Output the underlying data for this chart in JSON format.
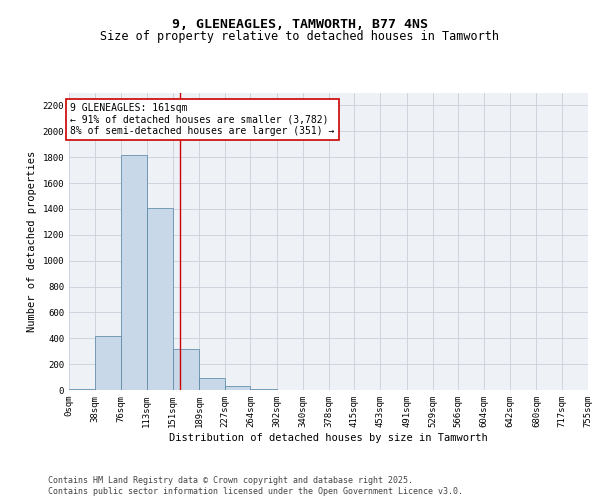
{
  "title": "9, GLENEAGLES, TAMWORTH, B77 4NS",
  "subtitle": "Size of property relative to detached houses in Tamworth",
  "xlabel": "Distribution of detached houses by size in Tamworth",
  "ylabel": "Number of detached properties",
  "bar_color": "#c8d8e8",
  "bar_edge_color": "#5080a0",
  "grid_color": "#c8d0da",
  "background_color": "#eef2f7",
  "annotation_text": "9 GLENEAGLES: 161sqm\n← 91% of detached houses are smaller (3,782)\n8% of semi-detached houses are larger (351) →",
  "vline_x": 161,
  "vline_color": "#cc0000",
  "annotation_box_color": "#cc0000",
  "bin_edges": [
    0,
    38,
    76,
    113,
    151,
    189,
    227,
    264,
    302,
    340,
    378,
    415,
    453,
    491,
    529,
    566,
    604,
    642,
    680,
    717,
    755
  ],
  "bar_heights": [
    10,
    420,
    1820,
    1410,
    320,
    90,
    30,
    10,
    0,
    0,
    0,
    0,
    0,
    0,
    0,
    0,
    0,
    0,
    0,
    0
  ],
  "tick_labels": [
    "0sqm",
    "38sqm",
    "76sqm",
    "113sqm",
    "151sqm",
    "189sqm",
    "227sqm",
    "264sqm",
    "302sqm",
    "340sqm",
    "378sqm",
    "415sqm",
    "453sqm",
    "491sqm",
    "529sqm",
    "566sqm",
    "604sqm",
    "642sqm",
    "680sqm",
    "717sqm",
    "755sqm"
  ],
  "ylim": [
    0,
    2300
  ],
  "yticks": [
    0,
    200,
    400,
    600,
    800,
    1000,
    1200,
    1400,
    1600,
    1800,
    2000,
    2200
  ],
  "footer_line1": "Contains HM Land Registry data © Crown copyright and database right 2025.",
  "footer_line2": "Contains public sector information licensed under the Open Government Licence v3.0.",
  "title_fontsize": 9.5,
  "subtitle_fontsize": 8.5,
  "axis_label_fontsize": 7.5,
  "tick_fontsize": 6.5,
  "annotation_fontsize": 7,
  "footer_fontsize": 6
}
